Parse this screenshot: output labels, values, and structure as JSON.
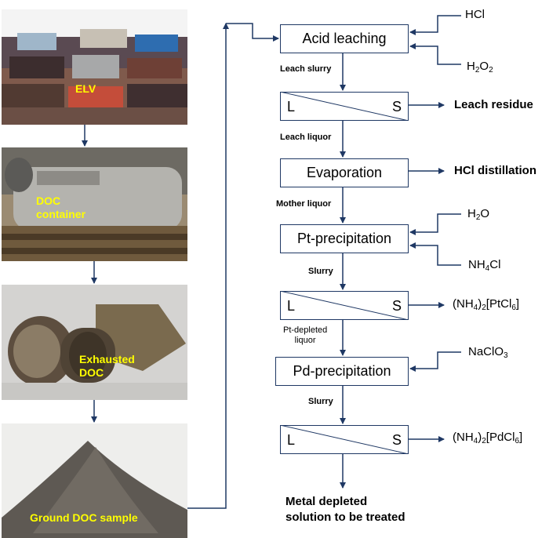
{
  "photos": {
    "elv": "ELV",
    "doc_container": [
      "DOC",
      "container"
    ],
    "exhausted_doc": [
      "Exhausted",
      "DOC"
    ],
    "ground_sample": "Ground DOC sample"
  },
  "process": {
    "acid_leaching": "Acid leaching",
    "evaporation": "Evaporation",
    "pt_precipitation": "Pt-precipitation",
    "pd_precipitation": "Pd-precipitation",
    "sep_left": "L",
    "sep_right": "S"
  },
  "flows": {
    "leach_slurry": "Leach slurry",
    "leach_liquor": "Leach liquor",
    "mother_liquor": "Mother liquor",
    "slurry1": "Slurry",
    "pt_depleted": [
      "Pt-depleted",
      "liquor"
    ],
    "slurry2": "Slurry"
  },
  "inputs": {
    "hcl": "HCl",
    "h2o2": [
      "H",
      "2",
      "O",
      "2"
    ],
    "h2o": [
      "H",
      "2",
      "O"
    ],
    "nh4cl": [
      "NH",
      "4",
      "Cl"
    ],
    "naclo3": [
      "NaClO",
      "3"
    ]
  },
  "outputs": {
    "leach_residue": "Leach residue",
    "hcl_distillation": "HCl distillation",
    "pt_salt": [
      "(NH",
      "4",
      ")",
      "2",
      "[PtCl",
      "6",
      "]"
    ],
    "pd_salt": [
      "(NH",
      "4",
      ")",
      "2",
      "[PdCl",
      "6",
      "]"
    ],
    "final": [
      "Metal depleted",
      "solution to be treated"
    ]
  },
  "colors": {
    "arrow": "#1f3864",
    "photo_label": "#ffff00"
  }
}
